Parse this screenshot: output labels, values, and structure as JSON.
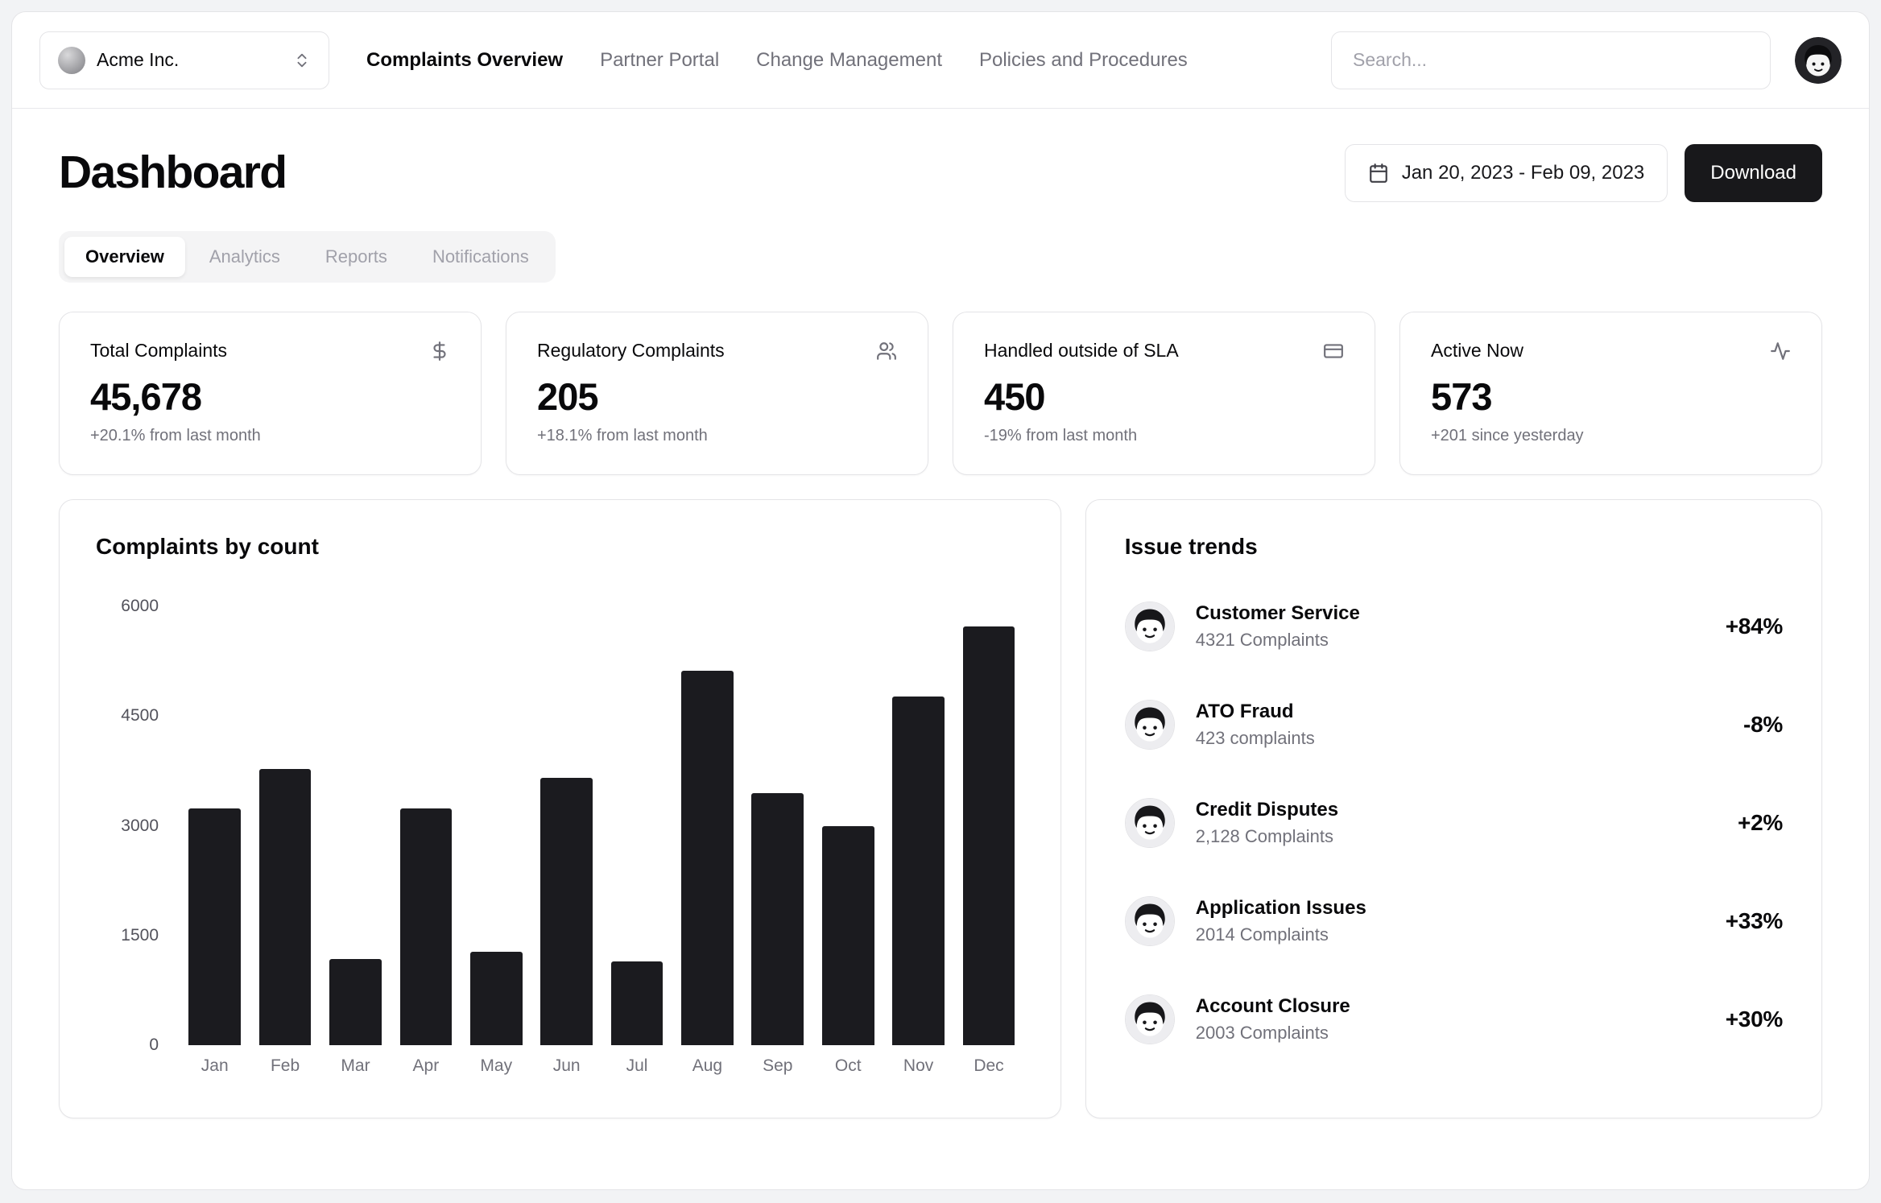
{
  "nav": {
    "company_name": "Acme Inc.",
    "links": [
      {
        "label": "Complaints Overview",
        "active": true
      },
      {
        "label": "Partner Portal",
        "active": false
      },
      {
        "label": "Change Management",
        "active": false
      },
      {
        "label": "Policies and Procedures",
        "active": false
      }
    ],
    "search_placeholder": "Search..."
  },
  "header": {
    "title": "Dashboard",
    "date_range": "Jan 20, 2023 - Feb 09, 2023",
    "download_label": "Download"
  },
  "tabs": [
    {
      "label": "Overview",
      "active": true
    },
    {
      "label": "Analytics",
      "active": false
    },
    {
      "label": "Reports",
      "active": false
    },
    {
      "label": "Notifications",
      "active": false
    }
  ],
  "stats": [
    {
      "title": "Total Complaints",
      "icon": "dollar-sign-icon",
      "value": "45,678",
      "change": "+20.1% from last month"
    },
    {
      "title": "Regulatory Complaints",
      "icon": "users-icon",
      "value": "205",
      "change": "+18.1% from last month"
    },
    {
      "title": "Handled outside of SLA",
      "icon": "credit-card-icon",
      "value": "450",
      "change": "-19% from last month"
    },
    {
      "title": "Active Now",
      "icon": "activity-icon",
      "value": "573",
      "change": "+201 since yesterday"
    }
  ],
  "chart_data": {
    "type": "bar",
    "title": "Complaints by count",
    "categories": [
      "Jan",
      "Feb",
      "Mar",
      "Apr",
      "May",
      "Jun",
      "Jul",
      "Aug",
      "Sep",
      "Oct",
      "Nov",
      "Dec"
    ],
    "values": [
      3240,
      3780,
      1180,
      3240,
      1280,
      3650,
      1140,
      5120,
      3450,
      3000,
      4770,
      5720
    ],
    "xlabel": "",
    "ylabel": "",
    "ylim": [
      0,
      6000
    ],
    "yticks": [
      0,
      1500,
      3000,
      4500,
      6000
    ],
    "grid": false,
    "bar_color": "#1b1b1f",
    "legend": null
  },
  "issue_trends": {
    "title": "Issue trends",
    "items": [
      {
        "name": "Customer Service",
        "detail": "4321 Complaints",
        "change": "+84%"
      },
      {
        "name": "ATO Fraud",
        "detail": "423 complaints",
        "change": "-8%"
      },
      {
        "name": "Credit Disputes",
        "detail": "2,128 Complaints",
        "change": "+2%"
      },
      {
        "name": "Application Issues",
        "detail": "2014 Complaints",
        "change": "+33%"
      },
      {
        "name": "Account Closure",
        "detail": "2003 Complaints",
        "change": "+30%"
      }
    ]
  }
}
